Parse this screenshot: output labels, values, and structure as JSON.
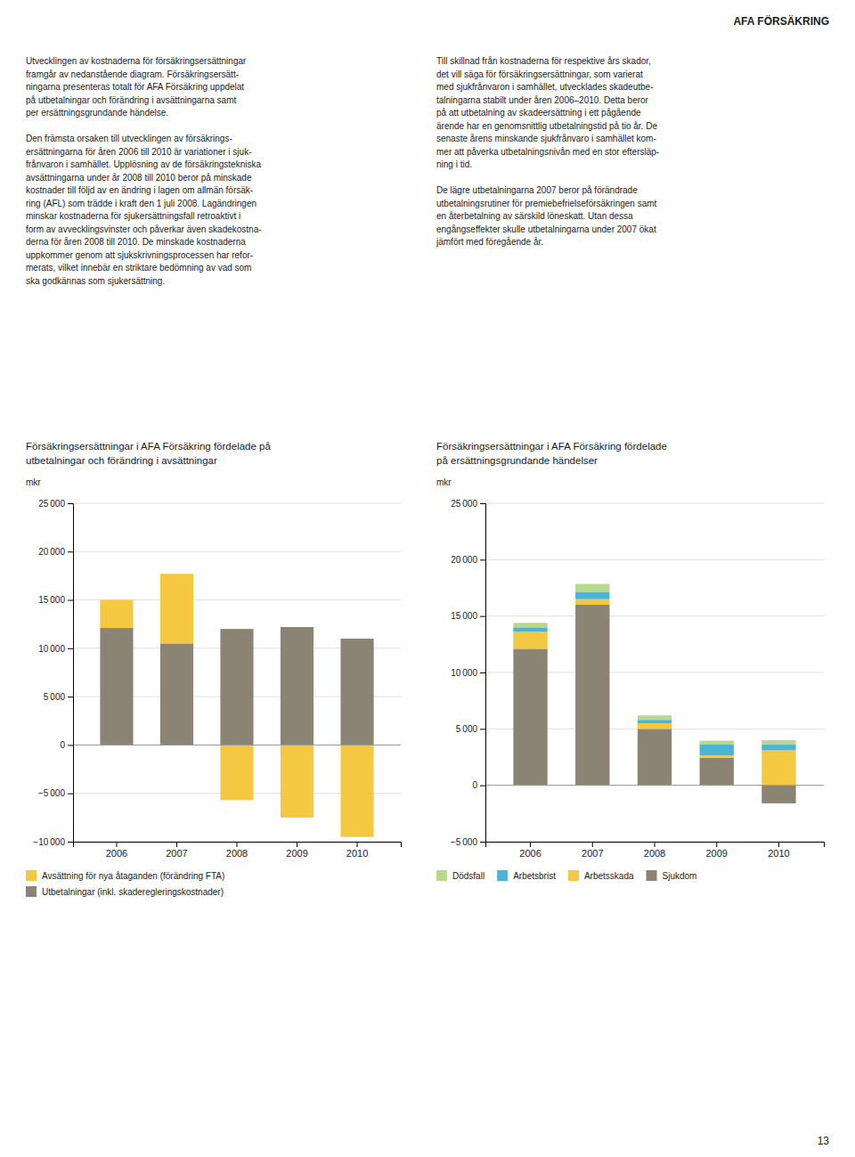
{
  "header": "AFA FÖRSÄKRING",
  "page_number": "13",
  "columns": [
    [
      [
        "Utvecklingen av kostnaderna för försäkringsersättningar",
        "framgår av nedanstående diagram. Försäkringsersätt-",
        "ningarna presenteras totalt för AFA Försäkring uppdelat",
        "på utbetalningar och förändring i avsättningarna samt",
        "per ersättningsgrundande händelse."
      ],
      [
        "Den främsta orsaken till utvecklingen av försäkrings-",
        "ersättningarna för åren 2006 till 2010 är variationer i sjuk-",
        "frånvaron i samhället. Upplösning av de försäkringstekniska",
        "avsättningarna under år 2008 till 2010 beror på minskade",
        "kostnader till följd av en ändring i lagen om allmän försäk-",
        "ring (AFL) som trädde i kraft den 1 juli 2008. Lagändringen",
        "minskar kostnaderna för sjukersättningsfall retroaktivt i",
        "form av avvecklingsvinster och påverkar även skadekostna-",
        "derna för åren 2008 till 2010. De minskade kostnaderna",
        "uppkommer genom att sjukskrivningsprocessen har refor-",
        "merats, vilket innebär en striktare bedömning av vad som",
        "ska godkännas som sjukersättning."
      ]
    ],
    [
      [
        "Till skillnad från kostnaderna för respektive års skador,",
        "det vill säga för försäkringsersättningar, som varierat",
        "med sjukfrånvaron i samhället, utvecklades skadeutbe-",
        "talningarna stabilt under åren 2006–2010. Detta beror",
        "på att utbetalning av skadeersättning i ett pågående",
        "ärende har en genomsnittlig utbetalningstid på tio år. De",
        "senaste årens minskande sjukfrånvaro i samhället kom-",
        "mer att påverka utbetalningsnivån med en stor eftersläp-",
        "ning i tid."
      ],
      [
        "De lägre utbetalningarna 2007 beror på förändrade",
        "utbetalningsrutiner för premiebefrielseförsäkringen samt",
        "en återbetalning av särskild löneskatt. Utan dessa",
        "engångseffekter skulle utbetalningarna under 2007 ökat",
        "jämfört med föregående år."
      ]
    ]
  ],
  "chart_data": [
    {
      "type": "bar",
      "stacked": true,
      "title": "Försäkringsersättningar i AFA Försäkring fördelade på",
      "subtitle": "utbetalningar och förändring i avsättningar",
      "ylabel": "mkr",
      "categories": [
        "2006",
        "2007",
        "2008",
        "2009",
        "2010"
      ],
      "series": [
        {
          "name": "Utbetalningar (inkl. skaderegleringskostnader)",
          "color": "#8b8474",
          "values": [
            12100,
            10500,
            12000,
            12200,
            11000
          ]
        },
        {
          "name": "Avsättning för nya åtaganden (förändring FTA)",
          "color": "#f5c842",
          "values": [
            2900,
            7200,
            -5700,
            -7500,
            -9500
          ]
        }
      ],
      "ylim": [
        -10000,
        25000
      ],
      "yticks": [
        {
          "value": -10000,
          "label": "−10 000"
        },
        {
          "value": -5000,
          "label": "−5 000"
        },
        0,
        {
          "value": 5000,
          "label": "5 000"
        },
        {
          "value": 10000,
          "label": "10 000"
        },
        {
          "value": 15000,
          "label": "15 000"
        },
        {
          "value": 20000,
          "label": "20 000"
        },
        {
          "value": 25000,
          "label": "25 000"
        }
      ],
      "grid": true,
      "legend": "bottom"
    },
    {
      "type": "bar",
      "stacked": true,
      "title": "Försäkringsersättningar i AFA Försäkring fördelade",
      "subtitle": "på ersättningsgrundande händelser",
      "ylabel": "mkr",
      "categories": [
        "2006",
        "2007",
        "2008",
        "2009",
        "2010"
      ],
      "series": [
        {
          "name": "Sjukdom",
          "color": "#8b8474",
          "values": [
            12100,
            16000,
            5000,
            2450,
            -1600
          ]
        },
        {
          "name": "Arbetsskada",
          "color": "#f5c842",
          "values": [
            1500,
            500,
            500,
            200,
            3100
          ]
        },
        {
          "name": "Arbetsbrist",
          "color": "#4ab5d4",
          "values": [
            400,
            650,
            300,
            1000,
            500
          ]
        },
        {
          "name": "Dödsfall",
          "color": "#b8d98d",
          "values": [
            400,
            700,
            400,
            300,
            400
          ]
        }
      ],
      "ylim": [
        -5000,
        25000
      ],
      "yticks": [
        {
          "value": -5000,
          "label": "−5 000"
        },
        0,
        {
          "value": 5000,
          "label": "5 000"
        },
        {
          "value": 10000,
          "label": "10 000"
        },
        {
          "value": 15000,
          "label": "15 000"
        },
        {
          "value": 20000,
          "label": "20 000"
        },
        {
          "value": 25000,
          "label": "25 000"
        }
      ],
      "grid": true,
      "legend": "bottom"
    }
  ]
}
